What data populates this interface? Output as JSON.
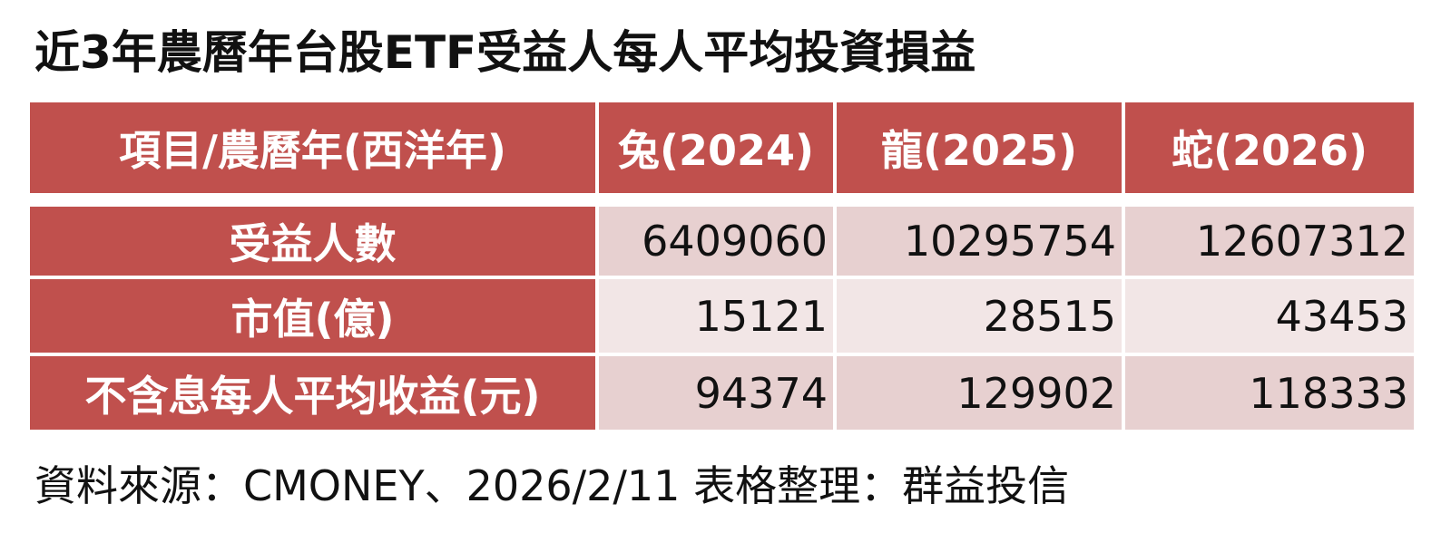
{
  "header": {
    "title": "近3年農曆年台股ETF受益人每人平均投資損益"
  },
  "table": {
    "columns": [
      "項目/農曆年(西洋年)",
      "兔(2024)",
      "龍(2025)",
      "蛇(2026)"
    ],
    "rows": [
      [
        "受益人數",
        6409060,
        10295754,
        12607312
      ],
      [
        "市值(億)",
        15121,
        28515,
        43453
      ],
      [
        "不含息每人平均收益(元)",
        94374,
        129902,
        118333
      ]
    ]
  },
  "footer": {
    "source": "資料來源：CMONEY、2026/2/11 表格整理：群益投信"
  }
}
